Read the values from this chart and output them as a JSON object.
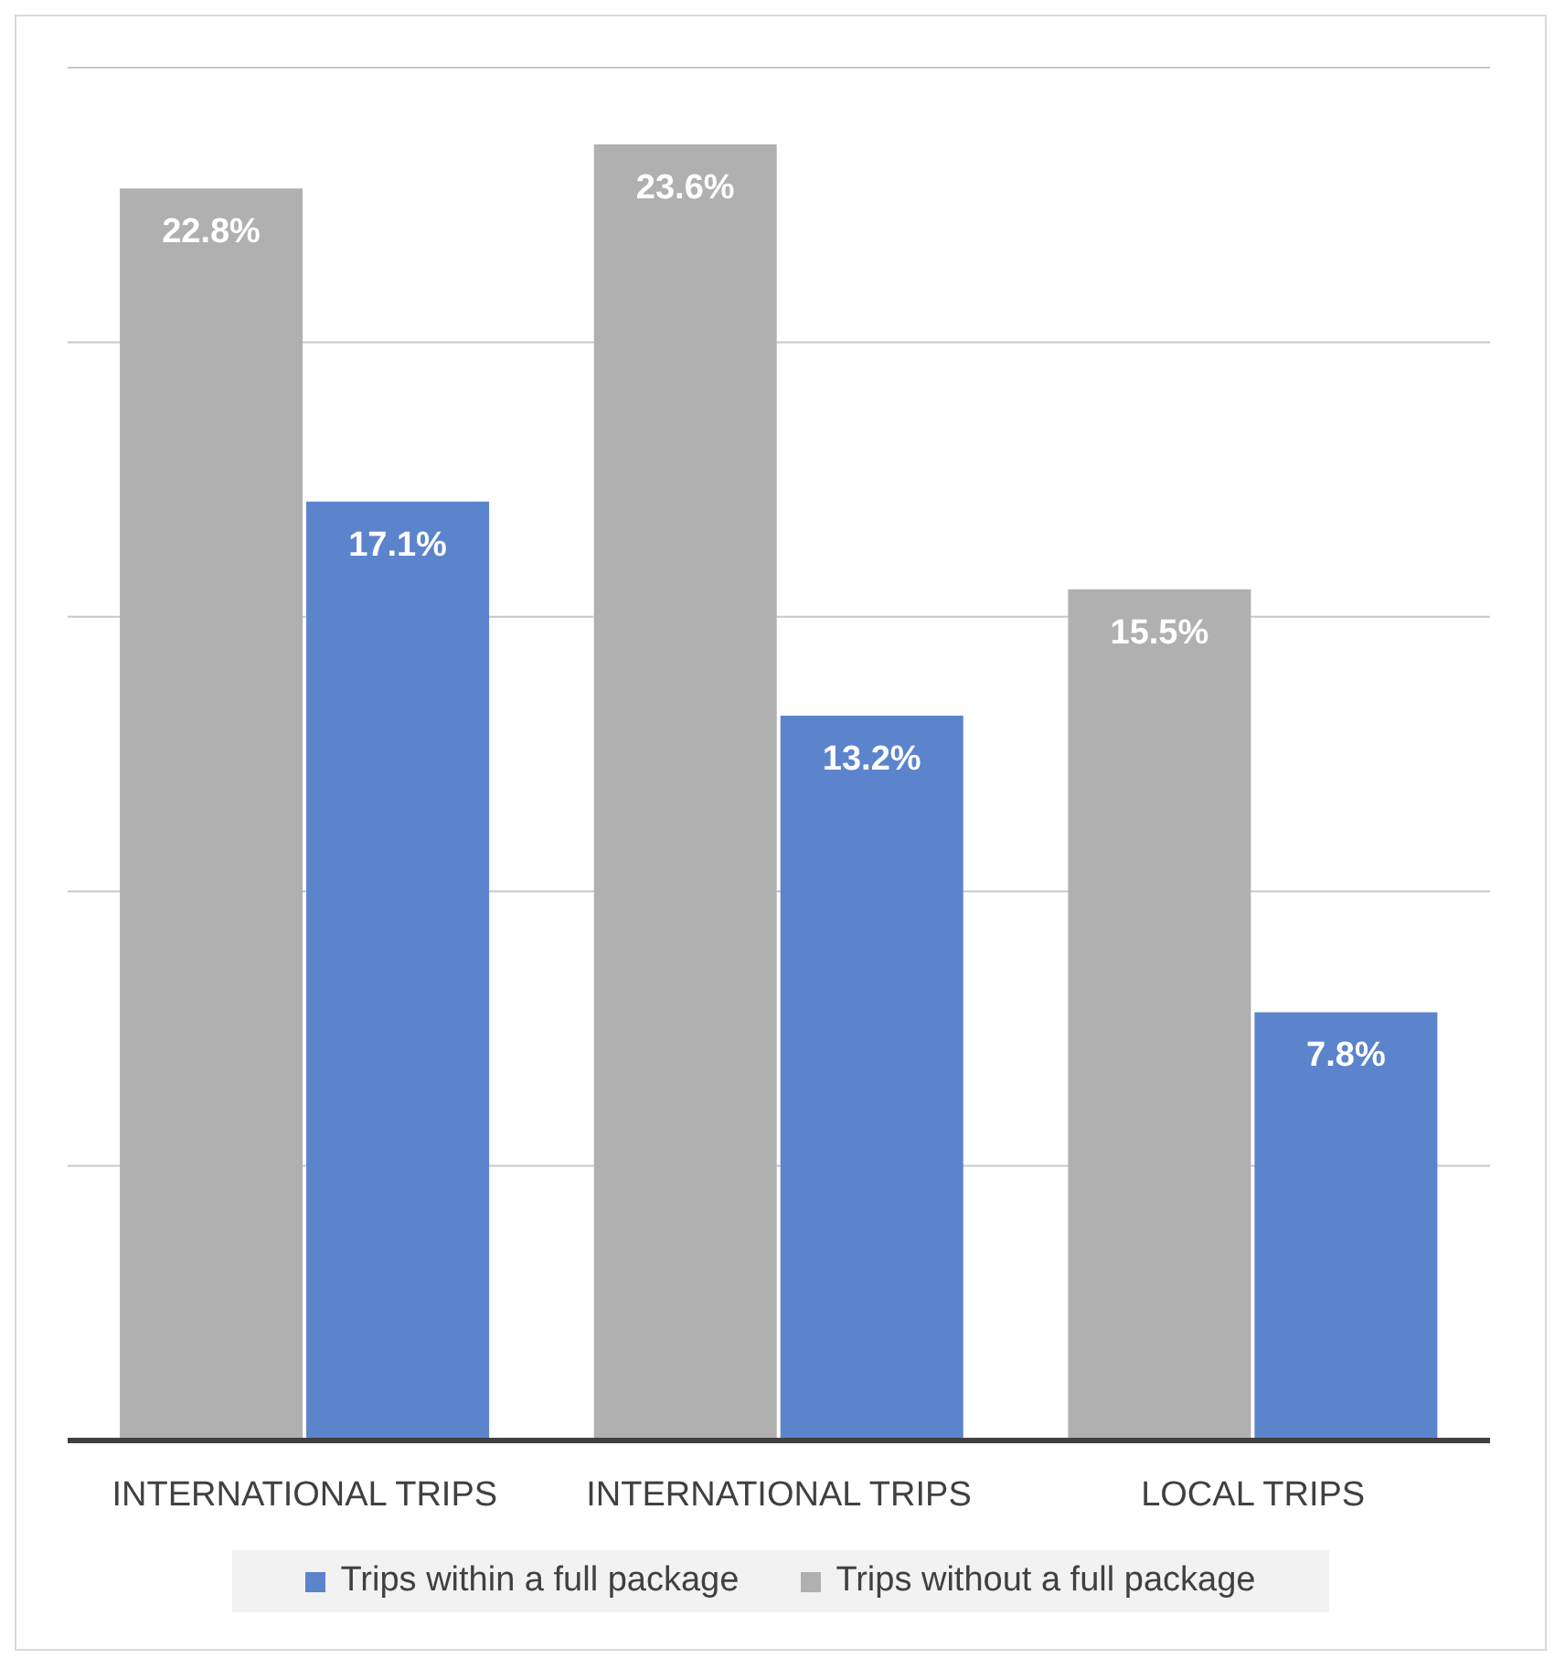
{
  "chart_data": {
    "type": "bar",
    "categories": [
      "INTERNATIONAL TRIPS",
      "INTERNATIONAL TRIPS",
      "LOCAL TRIPS"
    ],
    "series": [
      {
        "name": "Trips without a full package",
        "color": "#b0b0b0",
        "values": [
          22.8,
          23.6,
          15.5
        ],
        "value_labels": [
          "22.8%",
          "23.6%",
          "15.5%"
        ]
      },
      {
        "name": "Trips within a full package",
        "color": "#5b84cd",
        "values": [
          17.1,
          13.2,
          7.8
        ],
        "value_labels": [
          "17.1%",
          "13.2%",
          "7.8%"
        ]
      }
    ],
    "grid": "y",
    "legend": "bottom",
    "tick_labels": "x"
  }
}
